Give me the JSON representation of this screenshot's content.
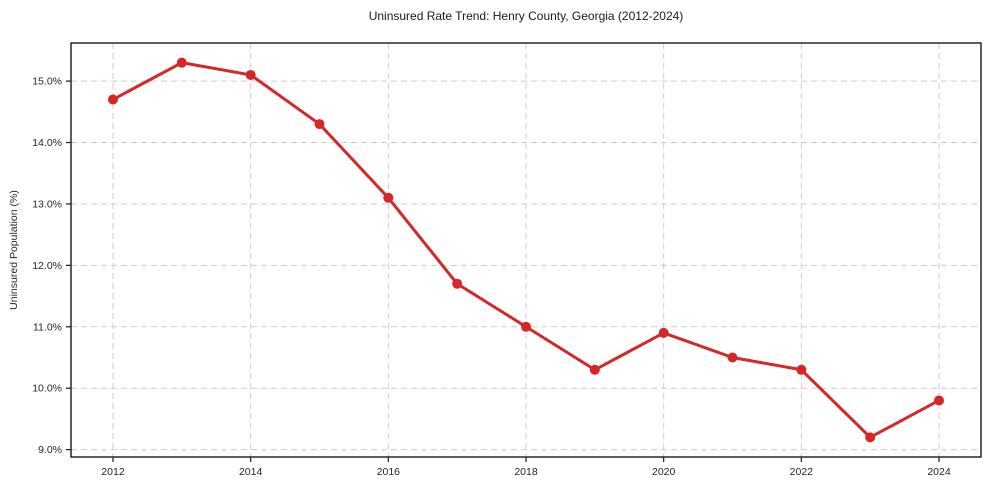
{
  "figure": {
    "background": "#ffffff"
  },
  "chart_data": {
    "type": "line",
    "title": "Uninsured Rate Trend: Henry County, Georgia (2012-2024)",
    "xlabel": "",
    "ylabel": "Uninsured Population (%)",
    "x": [
      2012,
      2013,
      2014,
      2015,
      2016,
      2017,
      2018,
      2019,
      2020,
      2021,
      2022,
      2023,
      2024
    ],
    "values": [
      14.7,
      15.3,
      15.1,
      14.3,
      13.1,
      11.7,
      11.0,
      10.3,
      10.9,
      10.5,
      10.3,
      9.2,
      9.8
    ],
    "xlim": [
      2011.39,
      2024.61
    ],
    "ylim": [
      8.88,
      15.62
    ],
    "xticks": [
      {
        "value": 2012,
        "label": "2012"
      },
      {
        "value": 2014,
        "label": "2014"
      },
      {
        "value": 2016,
        "label": "2016"
      },
      {
        "value": 2018,
        "label": "2018"
      },
      {
        "value": 2020,
        "label": "2020"
      },
      {
        "value": 2022,
        "label": "2022"
      },
      {
        "value": 2024,
        "label": "2024"
      }
    ],
    "yticks": [
      {
        "value": 9.0,
        "label": "9.0%"
      },
      {
        "value": 10.0,
        "label": "10.0%"
      },
      {
        "value": 11.0,
        "label": "11.0%"
      },
      {
        "value": 12.0,
        "label": "12.0%"
      },
      {
        "value": 13.0,
        "label": "13.0%"
      },
      {
        "value": 14.0,
        "label": "14.0%"
      },
      {
        "value": 15.0,
        "label": "15.0%"
      }
    ],
    "grid": true,
    "grid_style": "dashed",
    "legend": "none",
    "line_color": "#d62728",
    "marker_color": "#d62728",
    "grid_color": "#cccccc",
    "axis_color": "#1a1a1a",
    "text_color": "#262626"
  }
}
